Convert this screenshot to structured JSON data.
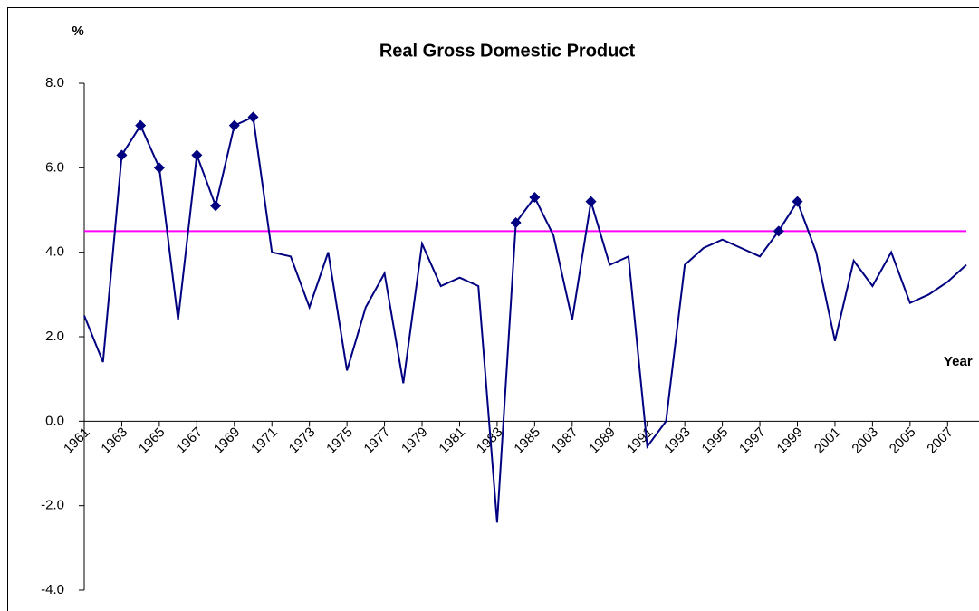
{
  "chart_data": {
    "type": "line",
    "title": "Real Gross Domestic Product",
    "y_label": "%",
    "x_label": "Year",
    "x": [
      1961,
      1962,
      1963,
      1964,
      1965,
      1966,
      1967,
      1968,
      1969,
      1970,
      1971,
      1972,
      1973,
      1974,
      1975,
      1976,
      1977,
      1978,
      1979,
      1980,
      1981,
      1982,
      1983,
      1984,
      1985,
      1986,
      1987,
      1988,
      1989,
      1990,
      1991,
      1992,
      1993,
      1994,
      1995,
      1996,
      1997,
      1998,
      1999,
      2000,
      2001,
      2002,
      2003,
      2004,
      2005,
      2006,
      2007,
      2008
    ],
    "series": [
      {
        "color": "#000080",
        "values": [
          2.5,
          1.4,
          6.3,
          7.0,
          6.0,
          2.4,
          6.3,
          5.1,
          7.0,
          7.2,
          4.0,
          3.9,
          2.7,
          4.0,
          1.2,
          2.7,
          3.5,
          0.9,
          4.2,
          3.2,
          3.4,
          3.2,
          -2.4,
          4.7,
          5.3,
          4.4,
          2.4,
          5.2,
          3.7,
          3.9,
          -0.6,
          0.0,
          3.7,
          4.1,
          4.3,
          4.1,
          3.9,
          4.5,
          5.2,
          4.0,
          1.9,
          3.8,
          3.2,
          4.0,
          2.8,
          3.0,
          3.3,
          3.7
        ]
      }
    ],
    "reference_line": {
      "value": 4.5,
      "color": "#ff00ff"
    },
    "xlim": [
      1961,
      2008
    ],
    "xticks": [
      1961,
      1963,
      1965,
      1967,
      1969,
      1971,
      1973,
      1975,
      1977,
      1979,
      1981,
      1983,
      1985,
      1987,
      1989,
      1991,
      1993,
      1995,
      1997,
      1999,
      2001,
      2003,
      2005,
      2007
    ],
    "ylim": [
      -4,
      8
    ],
    "yticks": [
      {
        "value": -4,
        "label": "-4.0"
      },
      {
        "value": -2,
        "label": "-2.0"
      },
      {
        "value": 0,
        "label": "0.0"
      },
      {
        "value": 2,
        "label": "2.0"
      },
      {
        "value": 4,
        "label": "4.0"
      },
      {
        "value": 6,
        "label": "6.0"
      },
      {
        "value": 8,
        "label": "8.0"
      }
    ]
  }
}
